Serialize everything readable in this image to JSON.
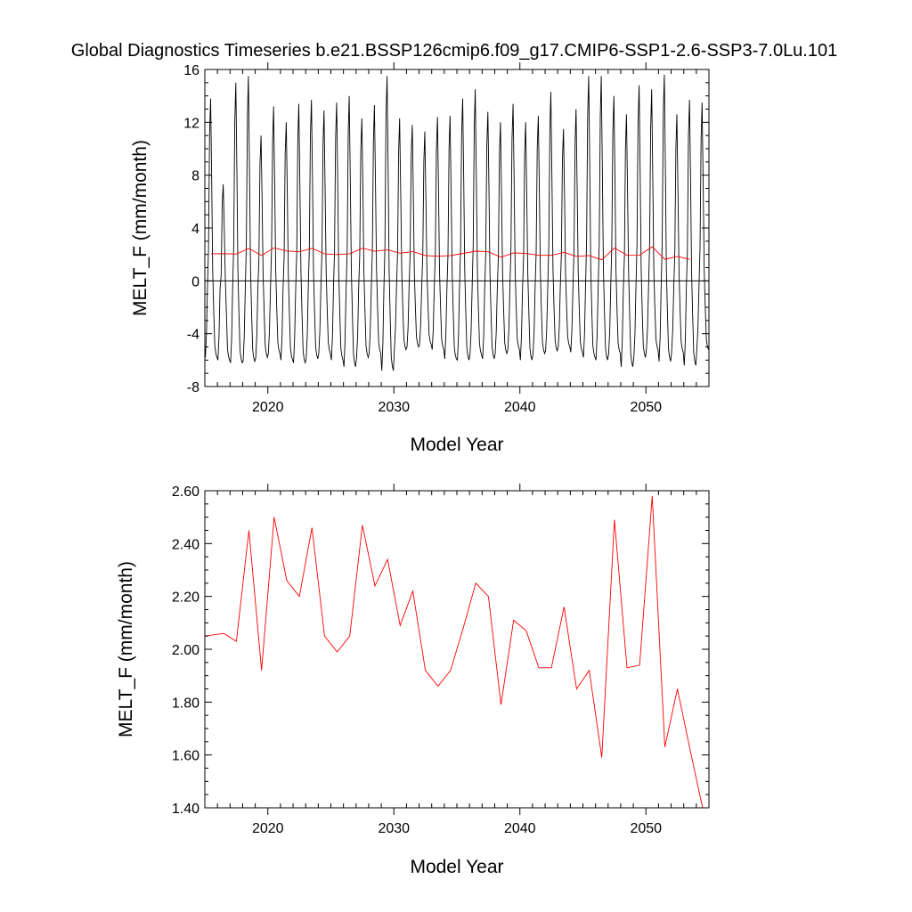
{
  "figure_title": "Global Diagnostics Timeseries b.e21.BSSP126cmip6.f09_g17.CMIP6-SSP1-2.6-SSP3-7.0Lu.101",
  "colors": {
    "monthly": "#000000",
    "annual": "#ff0000",
    "axis": "#000000"
  },
  "chart_data": [
    {
      "type": "line",
      "title": "",
      "xlabel": "Model Year",
      "ylabel": "MELT_F (mm/month)",
      "xlim": [
        2015,
        2055
      ],
      "ylim": [
        -8,
        16
      ],
      "xticks": [
        2020,
        2030,
        2040,
        2050
      ],
      "xtick_labels": [
        "2020",
        "2030",
        "2040",
        "2050"
      ],
      "yticks": [
        -8,
        -4,
        0,
        4,
        8,
        12,
        16
      ],
      "ytick_labels": [
        "-8",
        "-4",
        "0",
        "4",
        "8",
        "12",
        "16"
      ],
      "zero_line": true,
      "grid": false,
      "monthly_pattern_year_start": 2015,
      "series": [
        {
          "kind": "monthly",
          "annual_peaks": [
            13.8,
            7.3,
            15.0,
            15.5,
            11.0,
            13.2,
            12.0,
            13.4,
            13.7,
            12.9,
            13.5,
            14.0,
            12.3,
            13.3,
            15.5,
            12.3,
            11.8,
            11.3,
            12.4,
            12.5,
            13.8,
            14.5,
            12.8,
            12.0,
            13.4,
            12.0,
            12.5,
            14.3,
            11.5,
            13.0,
            15.5,
            15.5,
            14.0,
            12.6,
            14.8,
            14.5,
            15.6,
            12.6,
            13.7,
            13.5
          ],
          "annual_troughs": [
            -5.8,
            -6.0,
            -6.2,
            -6.1,
            -5.8,
            -5.5,
            -6.0,
            -6.2,
            -5.9,
            -5.5,
            -6.0,
            -6.5,
            -5.8,
            -5.5,
            -6.8,
            -5.2,
            -5.0,
            -4.8,
            -5.2,
            -5.9,
            -6.0,
            -5.6,
            -5.9,
            -5.5,
            -5.2,
            -6.0,
            -5.5,
            -5.3,
            -5.0,
            -5.4,
            -5.8,
            -6.0,
            -5.5,
            -6.5,
            -5.8,
            -5.2,
            -6.1,
            -5.4,
            -6.4,
            -5.2
          ]
        },
        {
          "kind": "annual",
          "x": [
            2015.5,
            2016.5,
            2017.5,
            2018.5,
            2019.5,
            2020.5,
            2021.5,
            2022.5,
            2023.5,
            2024.5,
            2025.5,
            2026.5,
            2027.5,
            2028.5,
            2029.5,
            2030.5,
            2031.5,
            2032.5,
            2033.5,
            2034.5,
            2035.5,
            2036.5,
            2037.5,
            2038.5,
            2039.5,
            2040.5,
            2041.5,
            2042.5,
            2043.5,
            2044.5,
            2045.5,
            2046.5,
            2047.5,
            2048.5,
            2049.5,
            2050.5,
            2051.5,
            2052.5,
            2053.5
          ],
          "values": [
            2.05,
            2.06,
            2.03,
            2.45,
            1.92,
            2.5,
            2.26,
            2.2,
            2.46,
            2.05,
            1.99,
            2.05,
            2.47,
            2.24,
            2.34,
            2.09,
            2.22,
            1.92,
            1.86,
            1.92,
            2.08,
            2.25,
            2.2,
            1.79,
            2.11,
            2.07,
            1.93,
            1.93,
            2.16,
            1.85,
            1.92,
            1.59,
            2.49,
            1.93,
            1.94,
            2.58,
            1.63,
            1.85,
            1.62
          ]
        }
      ]
    },
    {
      "type": "line",
      "title": "",
      "xlabel": "Model Year",
      "ylabel": "MELT_F (mm/month)",
      "xlim": [
        2015,
        2055
      ],
      "ylim": [
        1.4,
        2.6
      ],
      "xticks": [
        2020,
        2030,
        2040,
        2050
      ],
      "xtick_labels": [
        "2020",
        "2030",
        "2040",
        "2050"
      ],
      "yticks": [
        1.4,
        1.6,
        1.8,
        2.0,
        2.2,
        2.4,
        2.6
      ],
      "ytick_labels": [
        "1.40",
        "1.60",
        "1.80",
        "2.00",
        "2.20",
        "2.40",
        "2.60"
      ],
      "grid": false,
      "series": [
        {
          "kind": "annual",
          "x": [
            2015.0,
            2016.5,
            2017.5,
            2018.5,
            2019.5,
            2020.5,
            2021.5,
            2022.5,
            2023.5,
            2024.5,
            2025.5,
            2026.5,
            2027.5,
            2028.5,
            2029.5,
            2030.5,
            2031.5,
            2032.5,
            2033.5,
            2034.5,
            2035.5,
            2036.5,
            2037.5,
            2038.5,
            2039.5,
            2040.5,
            2041.5,
            2042.5,
            2043.5,
            2044.5,
            2045.5,
            2046.5,
            2047.5,
            2048.5,
            2049.5,
            2050.5,
            2051.5,
            2052.5,
            2053.5,
            2054.5
          ],
          "values": [
            2.05,
            2.06,
            2.03,
            2.45,
            1.92,
            2.5,
            2.26,
            2.2,
            2.46,
            2.05,
            1.99,
            2.05,
            2.47,
            2.24,
            2.34,
            2.09,
            2.22,
            1.92,
            1.86,
            1.92,
            2.08,
            2.25,
            2.2,
            1.79,
            2.11,
            2.07,
            1.93,
            1.93,
            2.16,
            1.85,
            1.92,
            1.59,
            2.49,
            1.93,
            1.94,
            2.58,
            1.63,
            1.85,
            1.62,
            1.4
          ]
        }
      ]
    }
  ]
}
